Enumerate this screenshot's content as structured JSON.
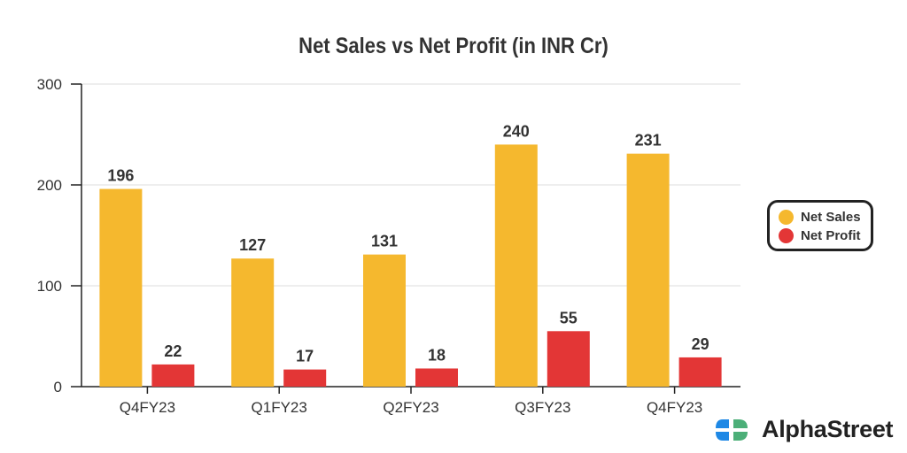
{
  "chart_data": {
    "type": "bar",
    "title": "Net Sales vs Net Profit (in INR Cr)",
    "categories": [
      "Q4FY23",
      "Q1FY23",
      "Q2FY23",
      "Q3FY23",
      "Q4FY23"
    ],
    "series": [
      {
        "name": "Net Sales",
        "color": "#F5B82E",
        "values": [
          196,
          127,
          131,
          240,
          231
        ]
      },
      {
        "name": "Net Profit",
        "color": "#E33636",
        "values": [
          22,
          17,
          18,
          55,
          29
        ]
      }
    ],
    "yticks": [
      0,
      100,
      200,
      300
    ],
    "ylim": [
      0,
      300
    ],
    "xlabel": "",
    "ylabel": "",
    "grid": true,
    "legend": "right"
  },
  "brand": {
    "name": "AlphaStreet"
  }
}
